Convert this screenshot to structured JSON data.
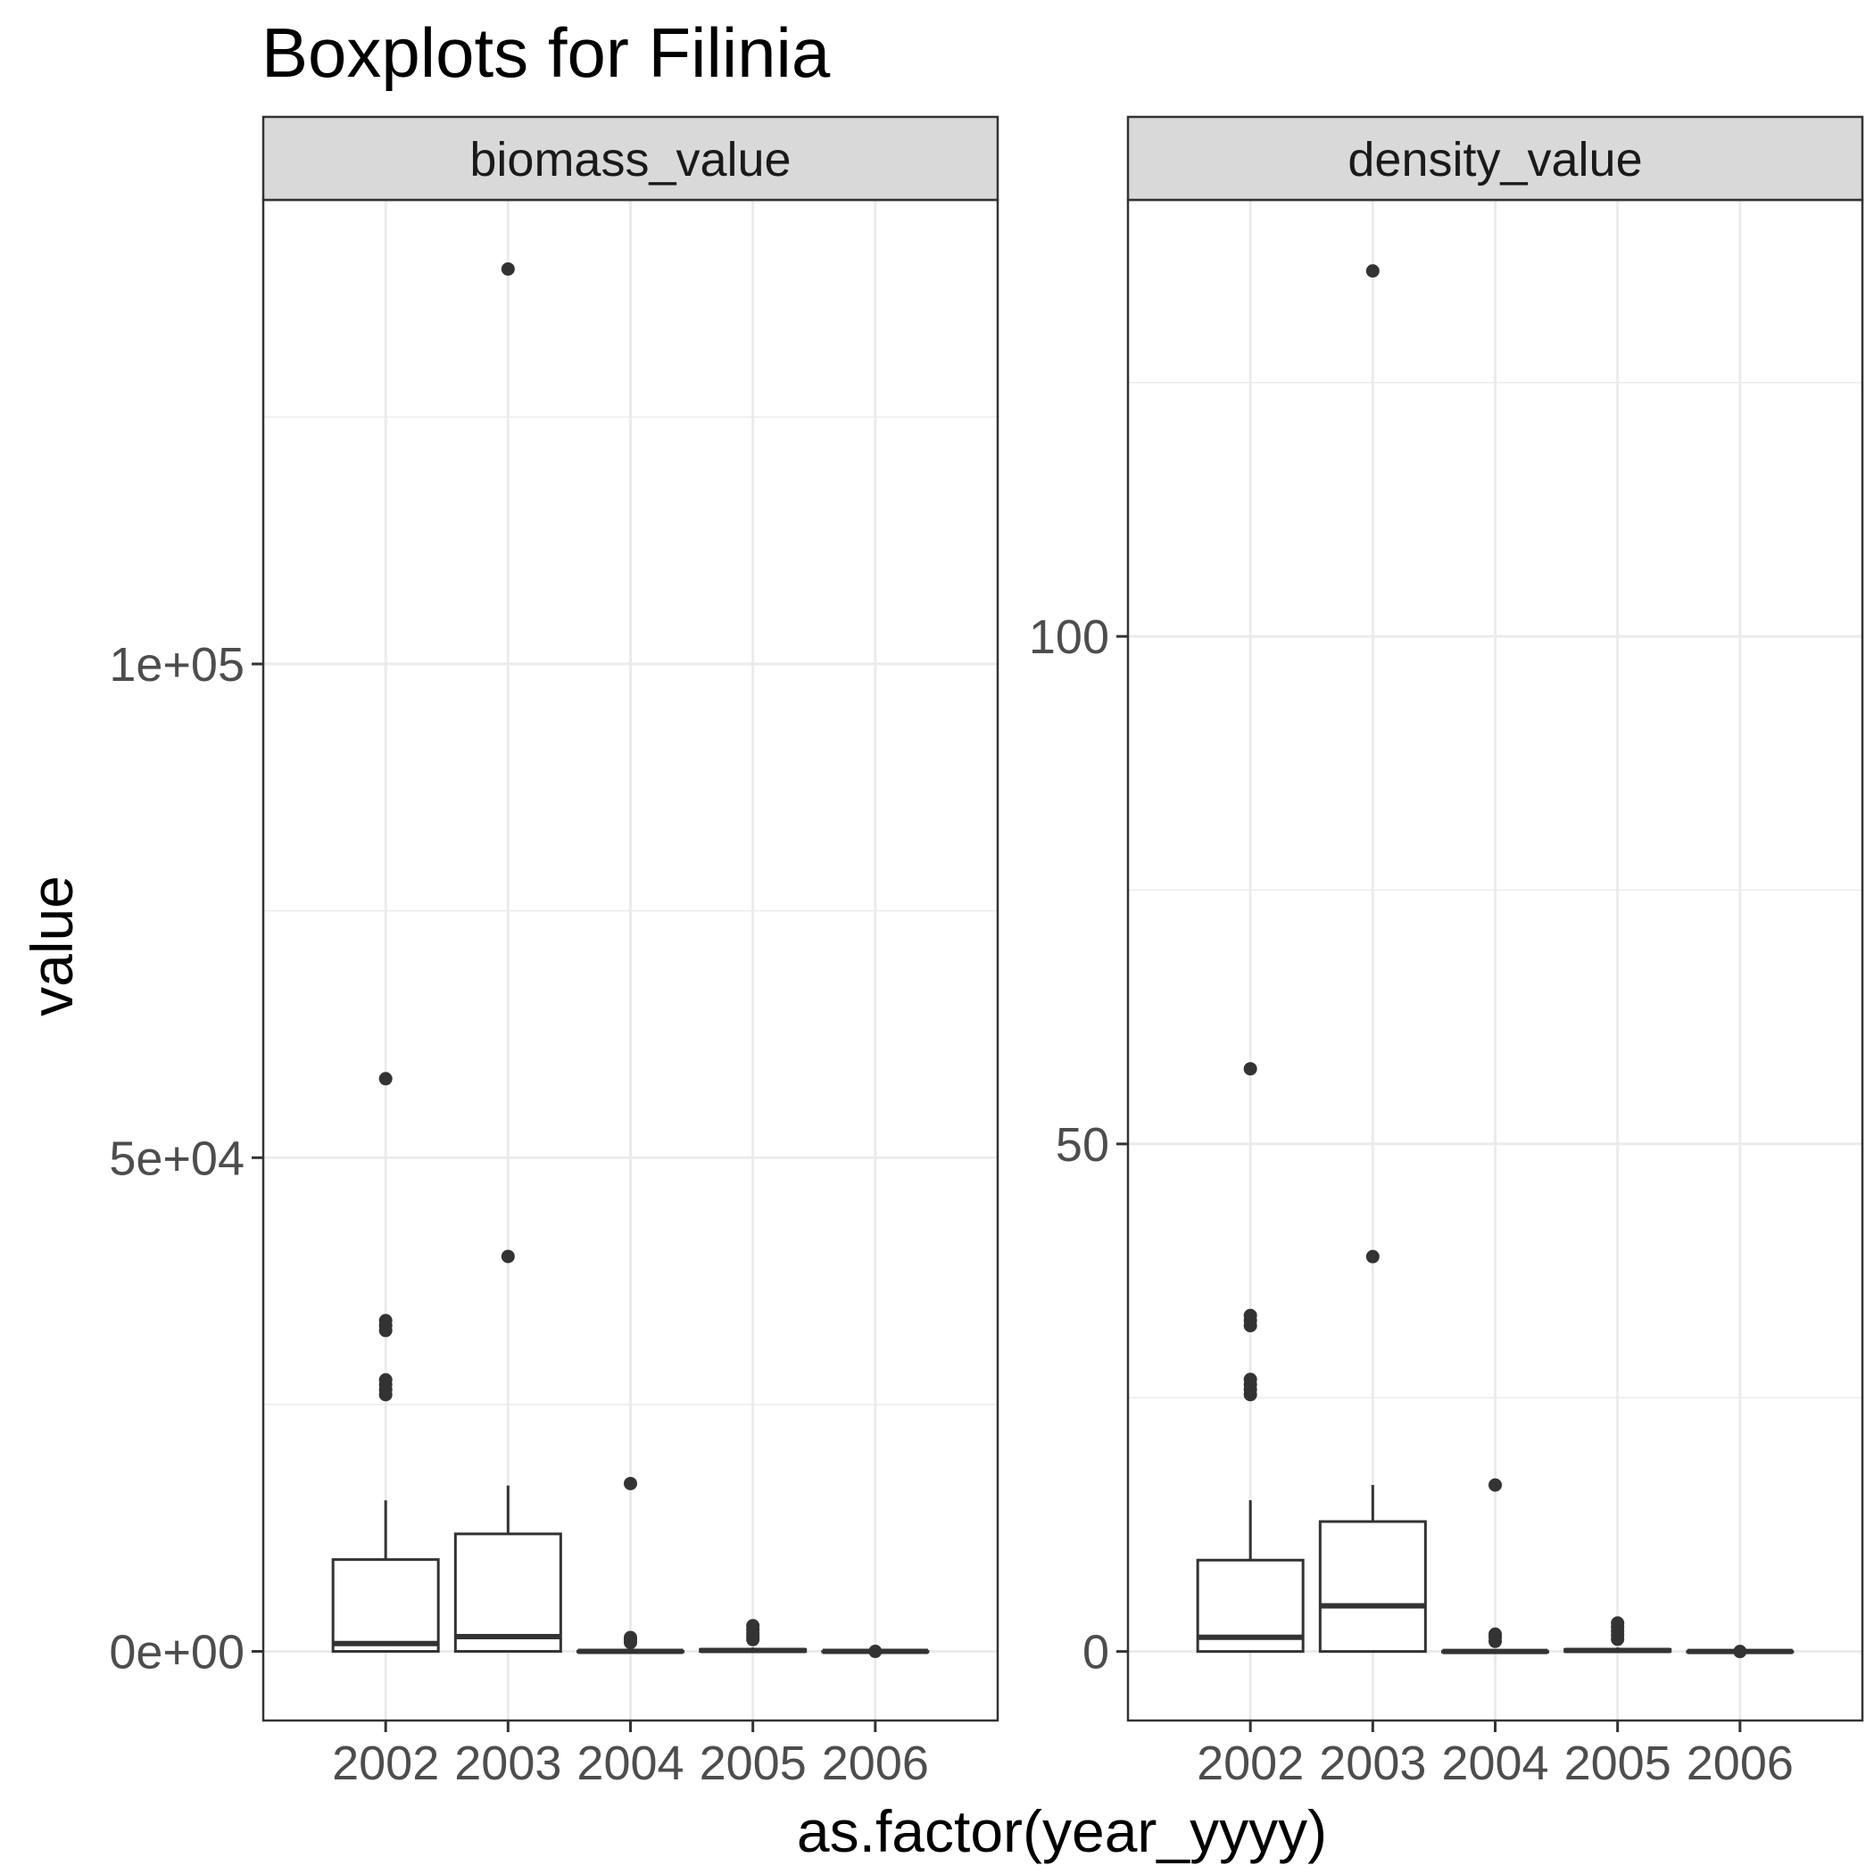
{
  "chart_data": {
    "type": "boxplot",
    "title": "Boxplots for Filinia",
    "xlabel": "as.factor(year_yyyy)",
    "ylabel": "value",
    "categories": [
      "2002",
      "2003",
      "2004",
      "2005",
      "2006"
    ],
    "grid": true,
    "legend": "none",
    "facets": [
      {
        "label": "biomass_value",
        "ylim": [
          -7000,
          147000
        ],
        "y_ticks": [
          0,
          50000,
          100000
        ],
        "y_tick_labels": [
          "0e+00",
          "5e+04",
          "1e+05"
        ],
        "minor_ticks": [
          25000,
          75000,
          125000
        ],
        "boxes": [
          {
            "category": "2002",
            "low": 0,
            "q1": 0,
            "median": 800,
            "q3": 9300,
            "high": 15300,
            "outliers": [
              26000,
              26500,
              27000,
              27500,
              32500,
              33000,
              33500,
              58000
            ]
          },
          {
            "category": "2003",
            "low": 0,
            "q1": 0,
            "median": 1500,
            "q3": 11900,
            "high": 16800,
            "outliers": [
              40000,
              140000
            ]
          },
          {
            "category": "2004",
            "low": 0,
            "q1": 0,
            "median": 0,
            "q3": 0,
            "high": 0,
            "outliers": [
              900,
              1200,
              1400,
              17000
            ]
          },
          {
            "category": "2005",
            "low": 0,
            "q1": 0,
            "median": 100,
            "q3": 200,
            "high": 400,
            "outliers": [
              1200,
              1500,
              1800,
              2200,
              2600
            ]
          },
          {
            "category": "2006",
            "low": 0,
            "q1": 0,
            "median": 0,
            "q3": 0,
            "high": 0,
            "outliers": [
              0
            ]
          }
        ]
      },
      {
        "label": "density_value",
        "ylim": [
          -6.8,
          143
        ],
        "y_ticks": [
          0,
          50,
          100
        ],
        "y_tick_labels": [
          "0",
          "50",
          "100"
        ],
        "minor_ticks": [
          25,
          75,
          125
        ],
        "boxes": [
          {
            "category": "2002",
            "low": 0,
            "q1": 0,
            "median": 1.4,
            "q3": 9.0,
            "high": 14.9,
            "outliers": [
              25.3,
              25.8,
              26.3,
              26.8,
              32.1,
              32.6,
              33.1,
              57.4
            ]
          },
          {
            "category": "2003",
            "low": 0,
            "q1": 0,
            "median": 4.5,
            "q3": 12.8,
            "high": 16.4,
            "outliers": [
              38.9,
              136.0
            ]
          },
          {
            "category": "2004",
            "low": 0,
            "q1": 0,
            "median": 0,
            "q3": 0,
            "high": 0,
            "outliers": [
              1.0,
              1.4,
              1.7,
              16.4
            ]
          },
          {
            "category": "2005",
            "low": 0,
            "q1": 0,
            "median": 0.1,
            "q3": 0.2,
            "high": 0.4,
            "outliers": [
              1.2,
              1.6,
              2.0,
              2.4,
              2.8
            ]
          },
          {
            "category": "2006",
            "low": 0,
            "q1": 0,
            "median": 0,
            "q3": 0,
            "high": 0,
            "outliers": [
              0
            ]
          }
        ]
      }
    ]
  }
}
